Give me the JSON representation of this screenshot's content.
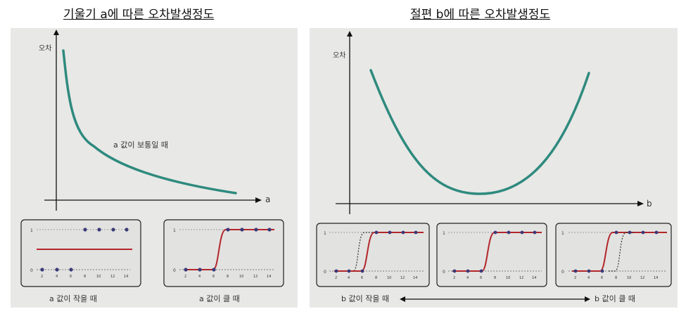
{
  "left": {
    "heading": "기울기 a에 따른 오차발생정도",
    "y_axis_label": "오차",
    "x_axis_label": "a",
    "curve_label": "a 값이 보통일 때",
    "caption_small": "a 값이 작을 때",
    "caption_large": "a 값이 클 때",
    "mini_ticks": [
      "2",
      "4",
      "6",
      "8",
      "10",
      "12",
      "14"
    ],
    "mini_y": [
      "1",
      "0"
    ]
  },
  "right": {
    "heading": "절편 b에 따른 오차발생정도",
    "y_axis_label": "오차",
    "x_axis_label": "b",
    "caption_small": "b 값이 작을 때",
    "caption_large": "b 값이 클 때",
    "mini_ticks": [
      "2",
      "4",
      "6",
      "8",
      "10",
      "12",
      "14"
    ],
    "mini_y": [
      "1",
      "0"
    ]
  },
  "colors": {
    "curve": "#2e8a7e",
    "sigmoid": "#b3262b",
    "dots": "#3a3a7a",
    "panel": "#e8e8e6"
  }
}
